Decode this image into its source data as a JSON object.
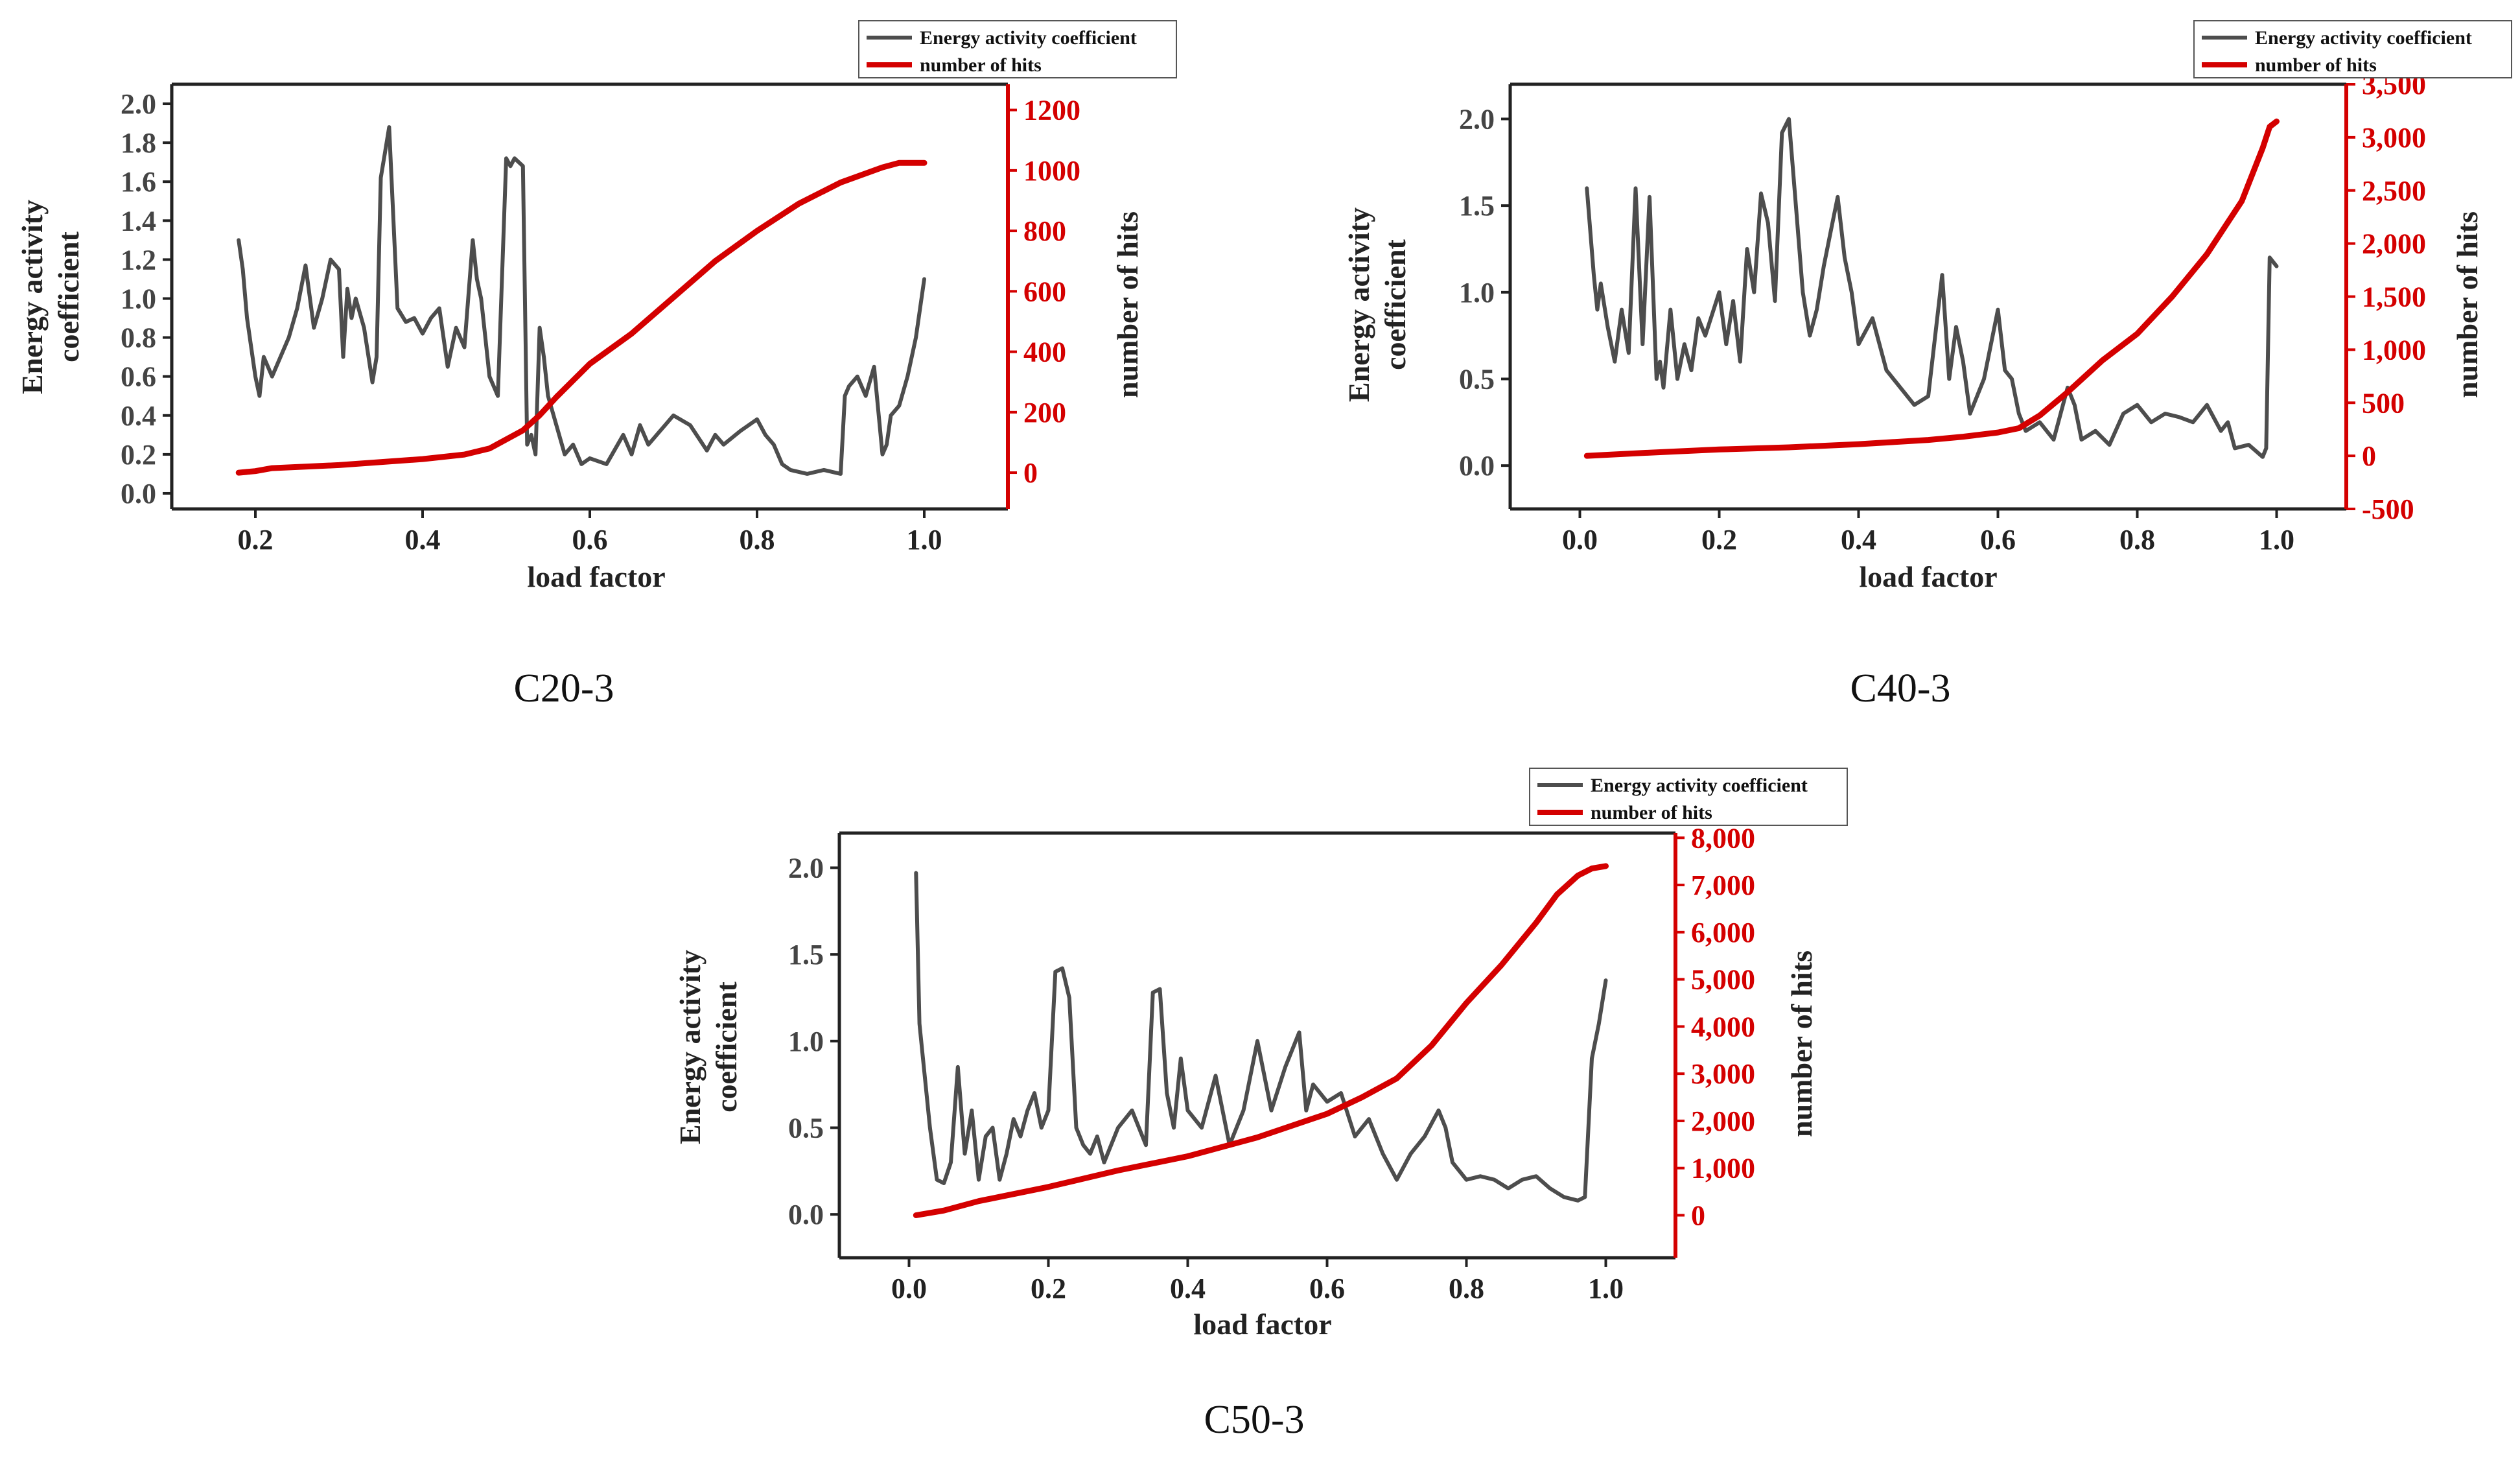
{
  "colors": {
    "energy": "#4d4d4d",
    "hits": "#d40000",
    "axis": "#222222"
  },
  "chart_data": [
    {
      "type": "line",
      "caption": "C20-3",
      "xlabel": "load factor",
      "ylabel": "Energy activity coefficient",
      "ylabel_right": "number of hits",
      "xlim": [
        0.1,
        1.1
      ],
      "ylim": [
        -0.08,
        2.1
      ],
      "ylim_right": [
        -120,
        1285
      ],
      "x_ticks": [
        "0.2",
        "0.4",
        "0.6",
        "0.8",
        "1.0"
      ],
      "x_tick_values": [
        0.2,
        0.4,
        0.6,
        0.8,
        1.0
      ],
      "y_ticks": [
        "0.0",
        "0.2",
        "0.4",
        "0.6",
        "0.8",
        "1.0",
        "1.2",
        "1.4",
        "1.6",
        "1.8",
        "2.0"
      ],
      "y_tick_values": [
        0,
        0.2,
        0.4,
        0.6,
        0.8,
        1.0,
        1.2,
        1.4,
        1.6,
        1.8,
        2.0
      ],
      "y_right_ticks": [
        "0",
        "200",
        "400",
        "600",
        "800",
        "1000",
        "1200"
      ],
      "y_right_tick_values": [
        0,
        200,
        400,
        600,
        800,
        1000,
        1200
      ],
      "legend": {
        "position": "top-right",
        "entries": [
          "Energy activity coefficient",
          "number of hits"
        ]
      },
      "series": [
        {
          "name": "Energy activity coefficient",
          "axis": "left",
          "x": [
            0.18,
            0.185,
            0.19,
            0.2,
            0.205,
            0.21,
            0.22,
            0.24,
            0.25,
            0.26,
            0.27,
            0.28,
            0.29,
            0.3,
            0.305,
            0.31,
            0.315,
            0.32,
            0.33,
            0.34,
            0.345,
            0.35,
            0.355,
            0.36,
            0.37,
            0.38,
            0.39,
            0.4,
            0.41,
            0.42,
            0.43,
            0.44,
            0.45,
            0.46,
            0.465,
            0.47,
            0.475,
            0.48,
            0.49,
            0.5,
            0.505,
            0.51,
            0.52,
            0.525,
            0.53,
            0.535,
            0.54,
            0.545,
            0.55,
            0.56,
            0.57,
            0.58,
            0.59,
            0.6,
            0.62,
            0.64,
            0.65,
            0.66,
            0.67,
            0.68,
            0.7,
            0.72,
            0.74,
            0.75,
            0.76,
            0.78,
            0.8,
            0.81,
            0.82,
            0.83,
            0.84,
            0.86,
            0.88,
            0.9,
            0.905,
            0.91,
            0.92,
            0.93,
            0.94,
            0.95,
            0.955,
            0.96,
            0.97,
            0.98,
            0.99,
            1.0
          ],
          "y": [
            1.3,
            1.15,
            0.9,
            0.6,
            0.5,
            0.7,
            0.6,
            0.8,
            0.95,
            1.17,
            0.85,
            1.0,
            1.2,
            1.15,
            0.7,
            1.05,
            0.9,
            1.0,
            0.85,
            0.57,
            0.7,
            1.62,
            1.75,
            1.88,
            0.95,
            0.88,
            0.9,
            0.82,
            0.9,
            0.95,
            0.65,
            0.85,
            0.75,
            1.3,
            1.1,
            1.0,
            0.8,
            0.6,
            0.5,
            1.72,
            1.68,
            1.72,
            1.68,
            0.25,
            0.3,
            0.2,
            0.85,
            0.7,
            0.5,
            0.35,
            0.2,
            0.25,
            0.15,
            0.18,
            0.15,
            0.3,
            0.2,
            0.35,
            0.25,
            0.3,
            0.4,
            0.35,
            0.22,
            0.3,
            0.25,
            0.32,
            0.38,
            0.3,
            0.25,
            0.15,
            0.12,
            0.1,
            0.12,
            0.1,
            0.5,
            0.55,
            0.6,
            0.5,
            0.65,
            0.2,
            0.25,
            0.4,
            0.45,
            0.6,
            0.8,
            1.1
          ]
        },
        {
          "name": "number of hits",
          "axis": "right",
          "x": [
            0.18,
            0.2,
            0.22,
            0.3,
            0.4,
            0.45,
            0.48,
            0.5,
            0.52,
            0.54,
            0.56,
            0.6,
            0.65,
            0.7,
            0.75,
            0.8,
            0.85,
            0.9,
            0.95,
            0.97,
            1.0
          ],
          "y": [
            0,
            5,
            15,
            25,
            45,
            60,
            80,
            110,
            140,
            190,
            250,
            360,
            460,
            580,
            700,
            800,
            890,
            960,
            1010,
            1025,
            1025
          ]
        }
      ]
    },
    {
      "type": "line",
      "caption": "C40-3",
      "xlabel": "load factor",
      "ylabel": "Energy activity coefficient",
      "ylabel_right": "number of hits",
      "xlim": [
        -0.1,
        1.1
      ],
      "ylim": [
        -0.25,
        2.2
      ],
      "ylim_right": [
        -500,
        3500
      ],
      "x_ticks": [
        "0.0",
        "0.2",
        "0.4",
        "0.6",
        "0.8",
        "1.0"
      ],
      "x_tick_values": [
        0,
        0.2,
        0.4,
        0.6,
        0.8,
        1.0
      ],
      "y_ticks": [
        "0.0",
        "0.5",
        "1.0",
        "1.5",
        "2.0"
      ],
      "y_tick_values": [
        0,
        0.5,
        1.0,
        1.5,
        2.0
      ],
      "y_right_ticks": [
        "-500",
        "0",
        "500",
        "1,000",
        "1,500",
        "2,000",
        "2,500",
        "3,000",
        "3,500"
      ],
      "y_right_tick_values": [
        -500,
        0,
        500,
        1000,
        1500,
        2000,
        2500,
        3000,
        3500
      ],
      "legend": {
        "position": "top-right",
        "entries": [
          "Energy activity coefficient",
          "number of hits"
        ]
      },
      "series": [
        {
          "name": "Energy activity coefficient",
          "axis": "left",
          "x": [
            0.01,
            0.02,
            0.025,
            0.03,
            0.04,
            0.05,
            0.06,
            0.07,
            0.08,
            0.09,
            0.1,
            0.11,
            0.115,
            0.12,
            0.13,
            0.14,
            0.15,
            0.16,
            0.17,
            0.18,
            0.2,
            0.21,
            0.22,
            0.23,
            0.24,
            0.25,
            0.26,
            0.27,
            0.28,
            0.29,
            0.3,
            0.31,
            0.32,
            0.33,
            0.34,
            0.35,
            0.36,
            0.37,
            0.38,
            0.39,
            0.4,
            0.42,
            0.44,
            0.46,
            0.48,
            0.5,
            0.52,
            0.53,
            0.54,
            0.55,
            0.56,
            0.58,
            0.6,
            0.61,
            0.62,
            0.63,
            0.64,
            0.66,
            0.68,
            0.7,
            0.71,
            0.72,
            0.74,
            0.76,
            0.78,
            0.8,
            0.82,
            0.84,
            0.86,
            0.88,
            0.9,
            0.92,
            0.93,
            0.94,
            0.96,
            0.98,
            0.985,
            0.99,
            1.0
          ],
          "y": [
            1.6,
            1.1,
            0.9,
            1.05,
            0.8,
            0.6,
            0.9,
            0.65,
            1.6,
            0.7,
            1.55,
            0.5,
            0.6,
            0.45,
            0.9,
            0.5,
            0.7,
            0.55,
            0.85,
            0.75,
            1.0,
            0.7,
            0.95,
            0.6,
            1.25,
            1.0,
            1.57,
            1.4,
            0.95,
            1.92,
            2.0,
            1.5,
            1.0,
            0.75,
            0.9,
            1.15,
            1.35,
            1.55,
            1.2,
            1.0,
            0.7,
            0.85,
            0.55,
            0.45,
            0.35,
            0.4,
            1.1,
            0.5,
            0.8,
            0.6,
            0.3,
            0.5,
            0.9,
            0.55,
            0.5,
            0.3,
            0.2,
            0.25,
            0.15,
            0.45,
            0.35,
            0.15,
            0.2,
            0.12,
            0.3,
            0.35,
            0.25,
            0.3,
            0.28,
            0.25,
            0.35,
            0.2,
            0.25,
            0.1,
            0.12,
            0.05,
            0.1,
            1.2,
            1.15
          ]
        },
        {
          "name": "number of hits",
          "axis": "right",
          "x": [
            0.01,
            0.1,
            0.2,
            0.3,
            0.4,
            0.5,
            0.55,
            0.6,
            0.63,
            0.66,
            0.7,
            0.75,
            0.8,
            0.85,
            0.9,
            0.95,
            0.98,
            0.99,
            1.0
          ],
          "y": [
            0,
            30,
            60,
            80,
            110,
            150,
            180,
            220,
            260,
            380,
            600,
            900,
            1150,
            1500,
            1900,
            2400,
            2900,
            3100,
            3150
          ]
        }
      ]
    },
    {
      "type": "line",
      "caption": "C50-3",
      "xlabel": "load factor",
      "ylabel": "Energy activity coefficient",
      "ylabel_right": "number of hits",
      "xlim": [
        -0.1,
        1.1
      ],
      "ylim": [
        -0.25,
        2.2
      ],
      "ylim_right": [
        -900,
        8100
      ],
      "x_ticks": [
        "0.0",
        "0.2",
        "0.4",
        "0.6",
        "0.8",
        "1.0"
      ],
      "x_tick_values": [
        0,
        0.2,
        0.4,
        0.6,
        0.8,
        1.0
      ],
      "y_ticks": [
        "0.0",
        "0.5",
        "1.0",
        "1.5",
        "2.0"
      ],
      "y_tick_values": [
        0,
        0.5,
        1.0,
        1.5,
        2.0
      ],
      "y_right_ticks": [
        "0",
        "1,000",
        "2,000",
        "3,000",
        "4,000",
        "5,000",
        "6,000",
        "7,000",
        "8,000"
      ],
      "y_right_tick_values": [
        0,
        1000,
        2000,
        3000,
        4000,
        5000,
        6000,
        7000,
        8000
      ],
      "legend": {
        "position": "top-right",
        "entries": [
          "Energy activity coefficient",
          "number of hits"
        ]
      },
      "series": [
        {
          "name": "Energy activity coefficient",
          "axis": "left",
          "x": [
            0.01,
            0.015,
            0.02,
            0.03,
            0.04,
            0.05,
            0.06,
            0.07,
            0.08,
            0.09,
            0.1,
            0.11,
            0.12,
            0.13,
            0.14,
            0.15,
            0.16,
            0.17,
            0.18,
            0.19,
            0.2,
            0.21,
            0.22,
            0.23,
            0.24,
            0.25,
            0.26,
            0.27,
            0.28,
            0.3,
            0.32,
            0.34,
            0.35,
            0.36,
            0.37,
            0.38,
            0.39,
            0.4,
            0.42,
            0.44,
            0.46,
            0.48,
            0.5,
            0.52,
            0.54,
            0.56,
            0.57,
            0.58,
            0.6,
            0.62,
            0.64,
            0.66,
            0.68,
            0.7,
            0.72,
            0.74,
            0.76,
            0.77,
            0.78,
            0.8,
            0.82,
            0.84,
            0.86,
            0.88,
            0.9,
            0.92,
            0.94,
            0.96,
            0.97,
            0.98,
            0.99,
            1.0
          ],
          "y": [
            1.97,
            1.1,
            0.9,
            0.5,
            0.2,
            0.18,
            0.3,
            0.85,
            0.35,
            0.6,
            0.2,
            0.45,
            0.5,
            0.2,
            0.35,
            0.55,
            0.45,
            0.6,
            0.7,
            0.5,
            0.6,
            1.4,
            1.42,
            1.25,
            0.5,
            0.4,
            0.35,
            0.45,
            0.3,
            0.5,
            0.6,
            0.4,
            1.28,
            1.3,
            0.7,
            0.5,
            0.9,
            0.6,
            0.5,
            0.8,
            0.4,
            0.6,
            1.0,
            0.6,
            0.85,
            1.05,
            0.6,
            0.75,
            0.65,
            0.7,
            0.45,
            0.55,
            0.35,
            0.2,
            0.35,
            0.45,
            0.6,
            0.5,
            0.3,
            0.2,
            0.22,
            0.2,
            0.15,
            0.2,
            0.22,
            0.15,
            0.1,
            0.08,
            0.1,
            0.9,
            1.1,
            1.35
          ]
        },
        {
          "name": "number of hits",
          "axis": "right",
          "x": [
            0.01,
            0.05,
            0.1,
            0.2,
            0.3,
            0.4,
            0.5,
            0.6,
            0.65,
            0.7,
            0.75,
            0.8,
            0.85,
            0.9,
            0.93,
            0.96,
            0.98,
            1.0
          ],
          "y": [
            0,
            100,
            300,
            600,
            950,
            1250,
            1650,
            2150,
            2500,
            2900,
            3600,
            4500,
            5300,
            6200,
            6800,
            7200,
            7350,
            7400
          ]
        }
      ]
    }
  ]
}
